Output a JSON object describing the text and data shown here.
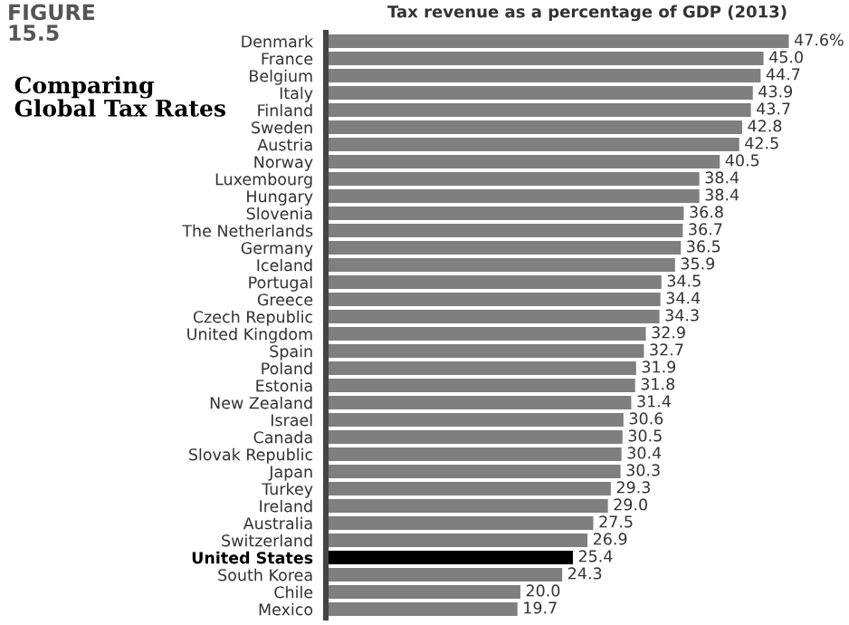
{
  "chart_data": {
    "type": "bar",
    "orientation": "horizontal",
    "title": "Comparing Global Tax Rates",
    "subtitle": "Tax revenue as a percentage of GDP (2013)",
    "annotations": [
      "FIGURE 15.5"
    ],
    "categories": [
      "Denmark",
      "France",
      "Belgium",
      "Italy",
      "Finland",
      "Sweden",
      "Austria",
      "Norway",
      "Luxembourg",
      "Hungary",
      "Slovenia",
      "The Netherlands",
      "Germany",
      "Iceland",
      "Portugal",
      "Greece",
      "Czech Republic",
      "United Kingdom",
      "Spain",
      "Poland",
      "Estonia",
      "New Zealand",
      "Israel",
      "Canada",
      "Slovak Republic",
      "Japan",
      "Turkey",
      "Ireland",
      "Australia",
      "Switzerland",
      "United States",
      "South Korea",
      "Chile",
      "Mexico"
    ],
    "values": [
      47.6,
      45.0,
      44.7,
      43.9,
      43.7,
      42.8,
      42.5,
      40.5,
      38.4,
      38.4,
      36.8,
      36.7,
      36.5,
      35.9,
      34.5,
      34.4,
      34.3,
      32.9,
      32.7,
      31.9,
      31.8,
      31.4,
      30.6,
      30.5,
      30.4,
      30.3,
      29.3,
      29.0,
      27.5,
      26.9,
      25.4,
      24.3,
      20.0,
      19.7
    ],
    "value_labels": [
      "47.6%",
      "45.0",
      "44.7",
      "43.9",
      "43.7",
      "42.8",
      "42.5",
      "40.5",
      "38.4",
      "38.4",
      "36.8",
      "36.7",
      "36.5",
      "35.9",
      "34.5",
      "34.4",
      "34.3",
      "32.9",
      "32.7",
      "31.9",
      "31.8",
      "31.4",
      "30.6",
      "30.5",
      "30.4",
      "30.3",
      "29.3",
      "29.0",
      "27.5",
      "26.9",
      "25.4",
      "24.3",
      "20.0",
      "19.7"
    ],
    "colors": [
      "#7f7f7f",
      "#7f7f7f",
      "#7f7f7f",
      "#7f7f7f",
      "#7f7f7f",
      "#7f7f7f",
      "#7f7f7f",
      "#7f7f7f",
      "#7f7f7f",
      "#7f7f7f",
      "#7f7f7f",
      "#7f7f7f",
      "#7f7f7f",
      "#7f7f7f",
      "#7f7f7f",
      "#7f7f7f",
      "#7f7f7f",
      "#7f7f7f",
      "#7f7f7f",
      "#7f7f7f",
      "#7f7f7f",
      "#7f7f7f",
      "#7f7f7f",
      "#7f7f7f",
      "#7f7f7f",
      "#7f7f7f",
      "#7f7f7f",
      "#7f7f7f",
      "#7f7f7f",
      "#7f7f7f",
      "#000000",
      "#7f7f7f",
      "#7f7f7f",
      "#7f7f7f"
    ],
    "grid": false,
    "legend": false
  }
}
